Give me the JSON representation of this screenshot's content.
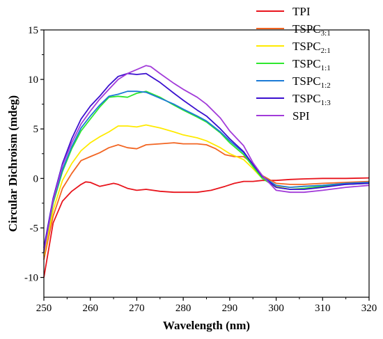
{
  "chart_data": {
    "type": "line",
    "title": "",
    "xlabel": "Wavelength (nm)",
    "ylabel": "Circular Dichroism (mdeg)",
    "xlim": [
      250,
      320
    ],
    "ylim": [
      -12,
      15
    ],
    "xticks": [
      250,
      260,
      270,
      280,
      290,
      300,
      310,
      320
    ],
    "yticks": [
      -10,
      -5,
      0,
      5,
      10,
      15
    ],
    "grid": false,
    "legend_position": "top-right",
    "series": [
      {
        "name": "TPI",
        "label_main": "TPI",
        "label_sub": "",
        "color": "#e8141c",
        "x": [
          250,
          252,
          254,
          256,
          258,
          259,
          260,
          262,
          264,
          265,
          266,
          268,
          270,
          272,
          275,
          278,
          280,
          283,
          286,
          289,
          291,
          293,
          295,
          297,
          300,
          303,
          306,
          310,
          315,
          320
        ],
        "y": [
          -10,
          -4.5,
          -2.3,
          -1.3,
          -0.6,
          -0.35,
          -0.4,
          -0.8,
          -0.6,
          -0.5,
          -0.6,
          -1.0,
          -1.2,
          -1.1,
          -1.3,
          -1.4,
          -1.4,
          -1.4,
          -1.2,
          -0.8,
          -0.5,
          -0.3,
          -0.3,
          -0.2,
          -0.2,
          -0.1,
          -0.05,
          0.0,
          0.0,
          0.05
        ]
      },
      {
        "name": "TSPC3:1",
        "label_main": "TSPC",
        "label_sub": "3:1",
        "color": "#f26522",
        "x": [
          250,
          252,
          254,
          256,
          258,
          260,
          262,
          264,
          266,
          268,
          270,
          272,
          275,
          278,
          280,
          283,
          285,
          287,
          289,
          291,
          293,
          295,
          297,
          300,
          303,
          306,
          310,
          315,
          320
        ],
        "y": [
          -8.2,
          -3.8,
          -1.0,
          0.5,
          1.8,
          2.2,
          2.6,
          3.1,
          3.4,
          3.1,
          3.0,
          3.4,
          3.5,
          3.6,
          3.5,
          3.5,
          3.4,
          3.0,
          2.4,
          2.2,
          2.2,
          1.5,
          0.3,
          -0.5,
          -0.6,
          -0.6,
          -0.5,
          -0.4,
          -0.3
        ]
      },
      {
        "name": "TSPC2:1",
        "label_main": "TSPC",
        "label_sub": "2:1",
        "color": "#ffea00",
        "x": [
          250,
          252,
          254,
          256,
          258,
          260,
          262,
          264,
          266,
          268,
          270,
          272,
          275,
          278,
          280,
          283,
          285,
          288,
          290,
          293,
          295,
          297,
          300,
          303,
          306,
          310,
          315,
          320
        ],
        "y": [
          -7.8,
          -3.2,
          -0.2,
          1.5,
          2.8,
          3.6,
          4.2,
          4.7,
          5.3,
          5.3,
          5.2,
          5.4,
          5.1,
          4.7,
          4.4,
          4.1,
          3.8,
          3.1,
          2.5,
          1.9,
          1.0,
          0.0,
          -0.8,
          -0.9,
          -0.8,
          -0.7,
          -0.5,
          -0.4
        ]
      },
      {
        "name": "TSPC1:1",
        "label_main": "TSPC",
        "label_sub": "1:1",
        "color": "#2ee82e",
        "x": [
          250,
          252,
          254,
          256,
          258,
          260,
          262,
          264,
          266,
          268,
          270,
          272,
          275,
          278,
          280,
          283,
          285,
          288,
          290,
          293,
          295,
          297,
          300,
          303,
          306,
          310,
          315,
          320
        ],
        "y": [
          -7.4,
          -2.5,
          0.7,
          3.0,
          4.8,
          6.0,
          7.2,
          8.2,
          8.3,
          8.2,
          8.6,
          8.8,
          8.2,
          7.4,
          6.9,
          6.2,
          5.7,
          4.6,
          3.6,
          2.4,
          1.2,
          0.0,
          -0.9,
          -1.1,
          -1.0,
          -0.8,
          -0.6,
          -0.5
        ]
      },
      {
        "name": "TSPC1:2",
        "label_main": "TSPC",
        "label_sub": "1:2",
        "color": "#1a7ad6",
        "x": [
          250,
          252,
          254,
          256,
          258,
          260,
          262,
          264,
          266,
          268,
          270,
          272,
          275,
          278,
          280,
          283,
          285,
          288,
          290,
          293,
          295,
          297,
          300,
          303,
          306,
          310,
          315,
          320
        ],
        "y": [
          -7.2,
          -2.3,
          0.9,
          3.2,
          5.1,
          6.3,
          7.4,
          8.3,
          8.5,
          8.8,
          8.8,
          8.7,
          8.1,
          7.5,
          7.0,
          6.3,
          5.8,
          4.7,
          3.8,
          2.6,
          1.4,
          0.2,
          -0.7,
          -0.9,
          -0.8,
          -0.7,
          -0.5,
          -0.4
        ]
      },
      {
        "name": "TSPC1:3",
        "label_main": "TSPC",
        "label_sub": "1:3",
        "color": "#3a0fcf",
        "x": [
          250,
          252,
          254,
          256,
          258,
          260,
          262,
          264,
          266,
          268,
          270,
          272,
          275,
          278,
          280,
          283,
          285,
          288,
          290,
          293,
          295,
          297,
          300,
          303,
          306,
          310,
          315,
          320
        ],
        "y": [
          -7.0,
          -2.0,
          1.5,
          4.0,
          6.0,
          7.3,
          8.3,
          9.4,
          10.3,
          10.6,
          10.5,
          10.6,
          9.7,
          8.6,
          7.9,
          6.9,
          6.3,
          5.0,
          4.0,
          2.7,
          1.4,
          0.2,
          -0.9,
          -1.1,
          -1.1,
          -0.9,
          -0.6,
          -0.5
        ]
      },
      {
        "name": "SPI",
        "label_main": "SPI",
        "label_sub": "",
        "color": "#a23bd9",
        "x": [
          250,
          252,
          254,
          256,
          258,
          260,
          262,
          264,
          266,
          268,
          270,
          272,
          273,
          275,
          278,
          280,
          283,
          285,
          288,
          290,
          293,
          295,
          297,
          300,
          303,
          306,
          310,
          315,
          320
        ],
        "y": [
          -7.5,
          -2.2,
          1.3,
          3.6,
          5.5,
          6.8,
          8.0,
          9.0,
          10.0,
          10.6,
          11.0,
          11.4,
          11.3,
          10.6,
          9.6,
          9.0,
          8.2,
          7.5,
          6.1,
          4.8,
          3.3,
          1.6,
          0.3,
          -1.2,
          -1.4,
          -1.4,
          -1.2,
          -0.9,
          -0.7
        ]
      }
    ]
  }
}
